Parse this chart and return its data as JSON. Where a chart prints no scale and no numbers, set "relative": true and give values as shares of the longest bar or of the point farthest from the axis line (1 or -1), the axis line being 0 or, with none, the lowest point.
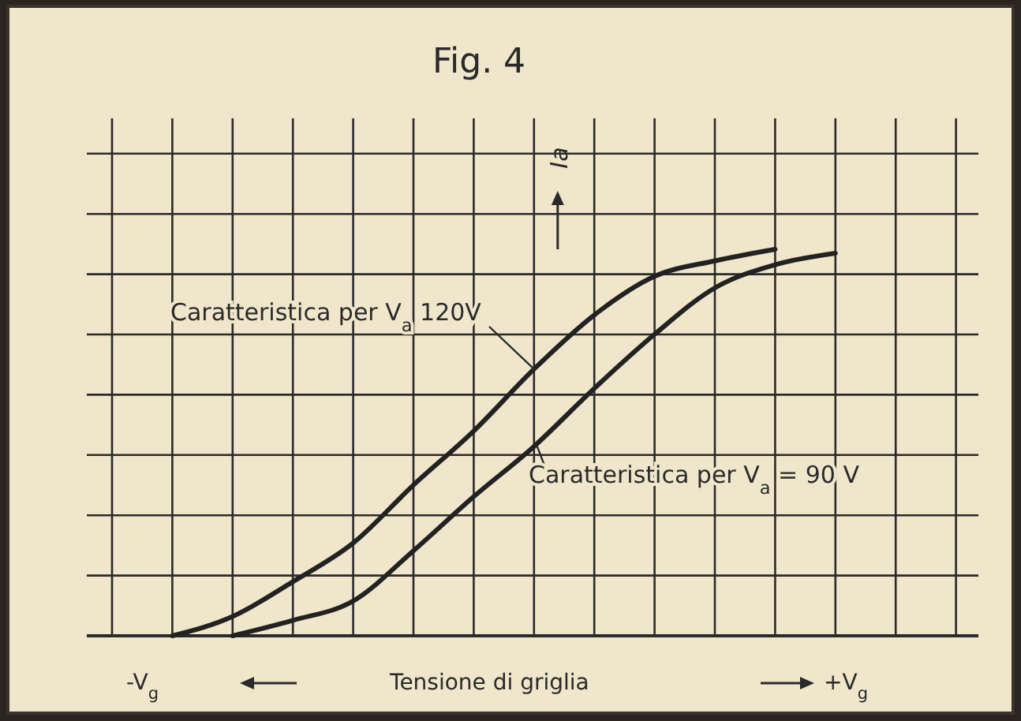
{
  "chart_data": {
    "type": "line",
    "title": "Fig. 4",
    "xlabel": "Tensione di griglia",
    "ylabel": "Ia",
    "relative": true,
    "grid": true,
    "marker": "none",
    "line_style": "solid",
    "categories": [
      null,
      null,
      null,
      null,
      null,
      null,
      null,
      null,
      null,
      null,
      null,
      null,
      null,
      null,
      null
    ],
    "annotations": [
      "-V$_{g}$",
      "+V$_{g}$"
    ],
    "series": [
      {
        "name": "Caratteristica per V$_{a}$ 120V",
        "color": "#222222",
        "values": [
          null,
          0,
          0.05,
          0.14,
          0.24,
          0.39,
          0.53,
          0.69,
          0.83,
          0.93,
          0.97,
          1.0,
          null,
          null,
          null
        ]
      },
      {
        "name": "Caratteristica per V$_{a}$ = 90 V",
        "color": "#222222",
        "values": [
          null,
          null,
          0,
          0.04,
          0.09,
          0.22,
          0.36,
          0.49,
          0.64,
          0.78,
          0.9,
          0.96,
          0.99,
          null,
          null
        ]
      }
    ]
  }
}
